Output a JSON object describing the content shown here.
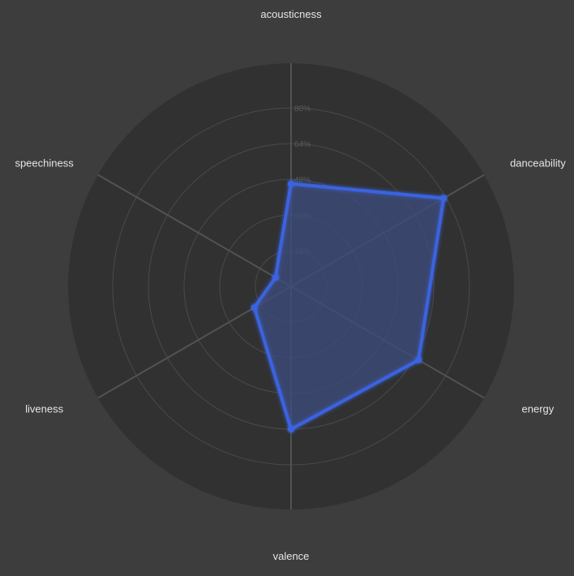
{
  "chart_data": {
    "type": "radar",
    "axes": [
      "acousticness",
      "danceability",
      "energy",
      "valence",
      "liveness",
      "speechiness"
    ],
    "series": [
      {
        "values": [
          46,
          79,
          66,
          64,
          19,
          8
        ]
      }
    ],
    "radial_ticks": [
      "16%",
      "32%",
      "48%",
      "64%",
      "80%"
    ],
    "radial_range": [
      0,
      100
    ],
    "grid": true,
    "colors": {
      "background": "#3d3d3d",
      "plot_background": "#313131",
      "grid": "#4a4a4a",
      "spoke": "#525252",
      "series_stroke": "#3b63e0",
      "series_fill": "#3c4a7a",
      "axis_label": "#e6e6e6",
      "tick_label": "#5c5c5c"
    }
  }
}
